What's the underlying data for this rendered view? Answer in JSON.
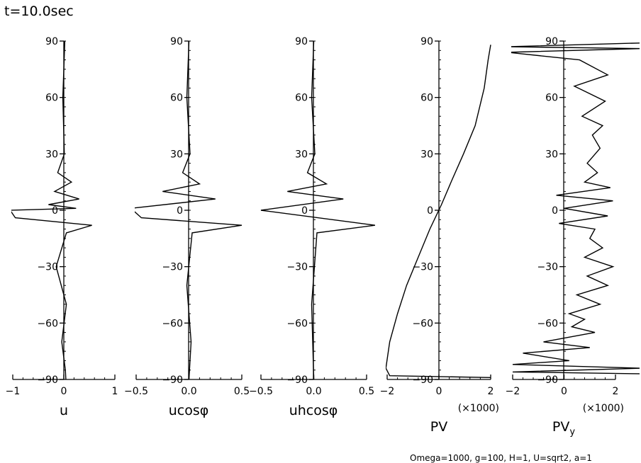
{
  "title": "t=10.0sec",
  "footnote": "Omega=1000, g=100, H=1, U=sqrt2, a=1",
  "y_axis": {
    "range": [
      -90,
      90
    ],
    "ticks": [
      90,
      60,
      30,
      0,
      -30,
      -60,
      -90
    ],
    "tick_labels": [
      "90",
      "60",
      "30",
      "0",
      "−30",
      "−60",
      "−90"
    ]
  },
  "chart_data": [
    {
      "type": "line",
      "xlabel": "u",
      "xlim": [
        -1,
        1
      ],
      "xticks": [
        -1,
        0,
        1
      ],
      "xtick_labels": [
        "−1",
        "0",
        "1"
      ],
      "multiplier": "",
      "series": [
        {
          "name": "u",
          "x": [
            0.02,
            -0.02,
            0.01,
            -0.12,
            0.15,
            -0.18,
            0.3,
            -0.3,
            0.24,
            -1.05,
            -0.95,
            0.55,
            0.05,
            -0.15,
            0.05,
            -0.04,
            0.03,
            0.04
          ],
          "y": [
            90,
            60,
            30,
            20,
            15,
            10,
            6,
            3,
            1,
            0,
            -4,
            -8,
            -12,
            -30,
            -50,
            -70,
            -85,
            -90
          ]
        }
      ]
    },
    {
      "type": "line",
      "xlabel": "ucosφ",
      "xlim": [
        -0.5,
        0.5
      ],
      "xticks": [
        -0.5,
        0,
        0.5
      ],
      "xtick_labels": [
        "−0.5",
        "0.0",
        "0.5"
      ],
      "multiplier": "",
      "series": [
        {
          "name": "ucosφ",
          "x": [
            0.0,
            -0.02,
            0.01,
            -0.06,
            0.1,
            -0.25,
            0.25,
            -0.55,
            -0.45,
            0.5,
            0.03,
            -0.02,
            0.02,
            0.0
          ],
          "y": [
            90,
            60,
            30,
            20,
            14,
            10,
            6,
            1,
            -4,
            -8,
            -12,
            -40,
            -70,
            -90
          ]
        }
      ]
    },
    {
      "type": "line",
      "xlabel": "uhcosφ",
      "xlim": [
        -0.5,
        0.5
      ],
      "xticks": [
        -0.5,
        0,
        0.5
      ],
      "xtick_labels": [
        "−0.5",
        "0.0",
        "0.5"
      ],
      "multiplier": "",
      "series": [
        {
          "name": "uhcosφ",
          "x": [
            0.0,
            -0.02,
            0.01,
            -0.06,
            0.12,
            -0.25,
            0.28,
            -0.5,
            0.58,
            0.03,
            -0.02,
            0.0
          ],
          "y": [
            90,
            60,
            30,
            20,
            14,
            10,
            6,
            0,
            -8,
            -12,
            -50,
            -90
          ]
        }
      ]
    },
    {
      "type": "line",
      "xlabel": "PV",
      "xlim": [
        -2,
        2
      ],
      "xticks": [
        -2,
        0,
        2
      ],
      "xtick_labels": [
        "−2",
        "0",
        "2"
      ],
      "multiplier": "(×1000)",
      "series": [
        {
          "name": "PV",
          "x": [
            2.0,
            1.9,
            1.75,
            1.4,
            0.95,
            0.5,
            0.1,
            -0.35,
            -0.8,
            -1.25,
            -1.6,
            -1.9,
            -2.05,
            -1.9,
            2.0
          ],
          "y": [
            88,
            80,
            65,
            45,
            30,
            16,
            3,
            -10,
            -25,
            -40,
            -55,
            -70,
            -84,
            -88,
            -89
          ]
        }
      ]
    },
    {
      "type": "line",
      "xlabel": "PV",
      "xlabel_sub": "y",
      "xlim": [
        -2,
        2
      ],
      "xticks": [
        -2,
        0,
        2
      ],
      "xtick_labels": [
        "−2",
        "0",
        "2"
      ],
      "multiplier": "(×1000)",
      "series": [
        {
          "name": "PVy",
          "x": [
            3.0,
            -2.2,
            3.0,
            -2.2,
            0.6,
            1.7,
            0.4,
            1.6,
            0.7,
            1.5,
            1.1,
            1.4,
            0.9,
            1.3,
            0.8,
            1.8,
            -0.3,
            1.9,
            0.0,
            1.7,
            -0.2,
            1.2,
            1.0,
            1.5,
            0.8,
            1.9,
            0.9,
            1.7,
            0.5,
            1.4,
            0.2,
            0.8,
            0.3,
            1.2,
            -0.8,
            1.0,
            -1.6,
            0.2,
            -2.0,
            3.0,
            -2.0,
            3.0
          ],
          "y": [
            89,
            87,
            86,
            84,
            80,
            72,
            66,
            58,
            50,
            45,
            40,
            33,
            25,
            20,
            15,
            12,
            8,
            5,
            1,
            -3,
            -7,
            -10,
            -15,
            -20,
            -25,
            -30,
            -35,
            -40,
            -45,
            -50,
            -55,
            -58,
            -62,
            -65,
            -70,
            -73,
            -76,
            -80,
            -82,
            -84,
            -86,
            -87
          ]
        }
      ]
    }
  ]
}
